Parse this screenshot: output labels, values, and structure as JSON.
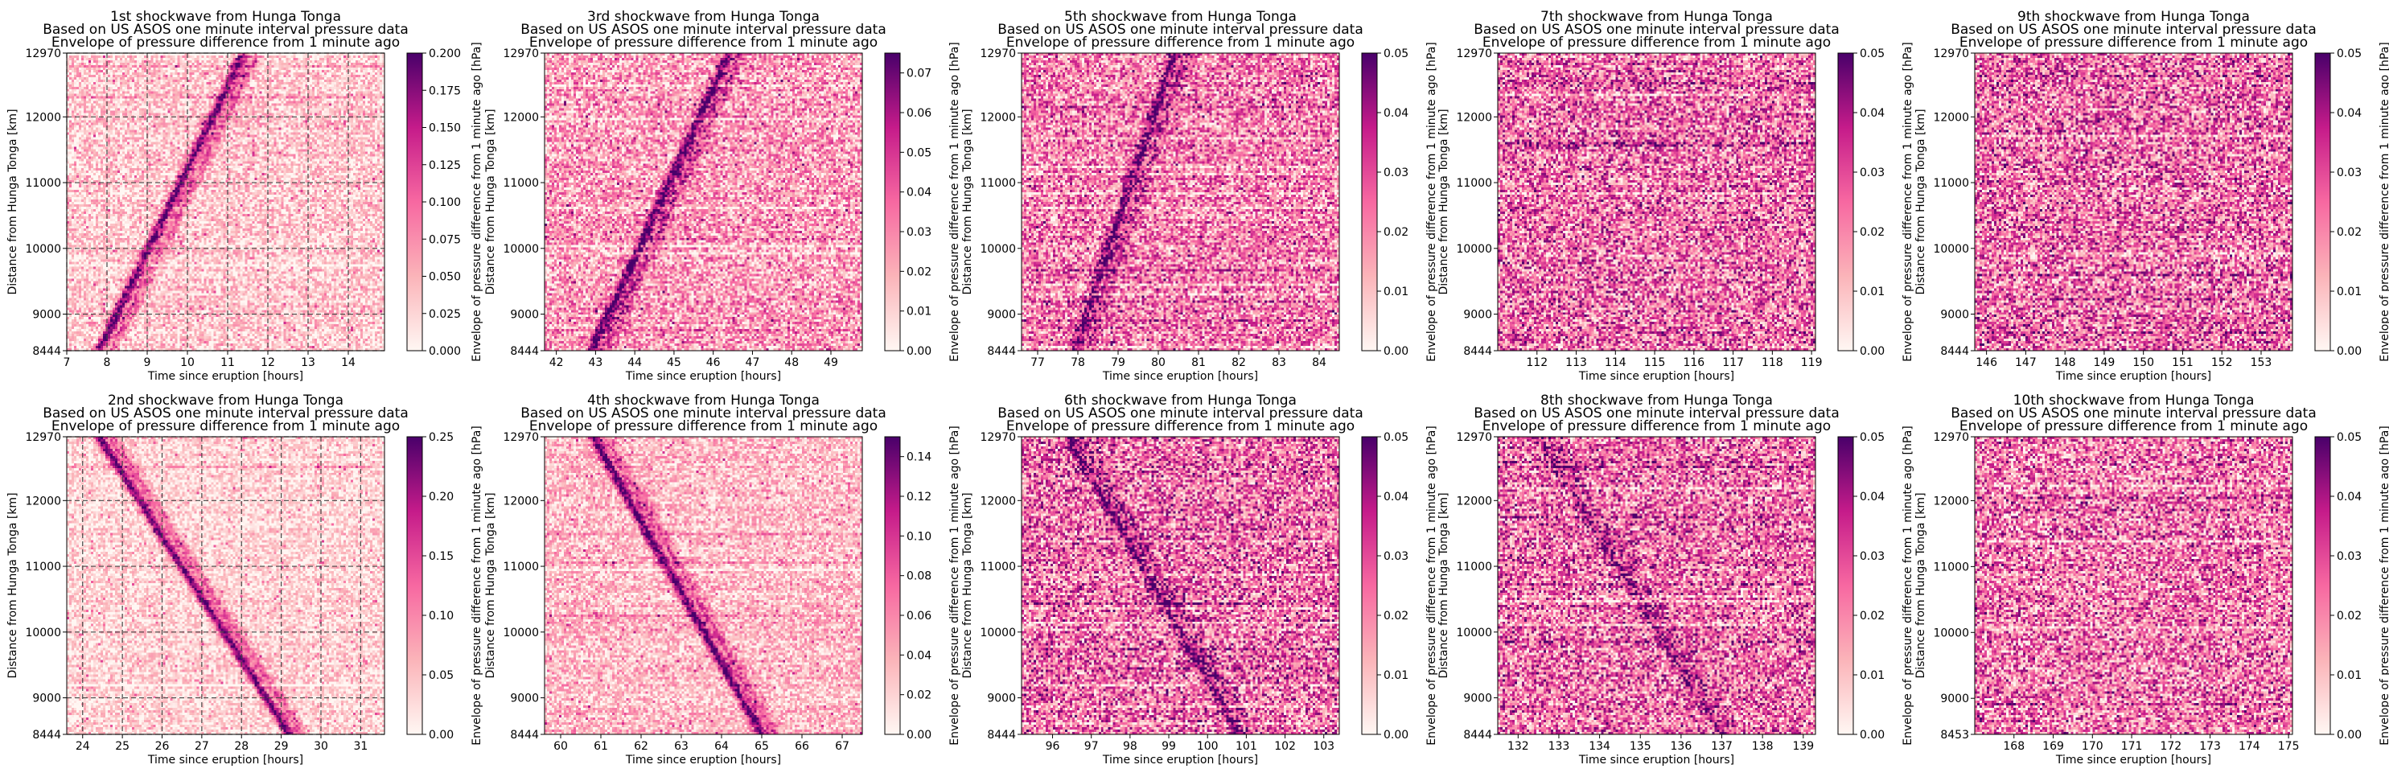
{
  "figure": {
    "colors": {
      "low": "#fff7f3",
      "mid1": "#fbb4b9",
      "mid2": "#f768a1",
      "mid3": "#c51b8a",
      "high": "#49006a",
      "grid": "#444444"
    },
    "y_label": "Distance from Hunga Tonga [km]",
    "x_label": "Time since eruption [hours]",
    "colorbar_label": "Envelope of pressure difference from 1 minute ago [hPa]"
  },
  "chart_data": [
    {
      "type": "heatmap",
      "title": [
        "1st shockwave from Hunga Tonga",
        "Based on US ASOS one minute interval pressure data",
        "Envelope of pressure difference from 1 minute ago"
      ],
      "xlabel": "Time since eruption [hours]",
      "ylabel": "Distance from Hunga Tonga [km]",
      "xlim": [
        7,
        14.9
      ],
      "ylim": [
        8444,
        12970
      ],
      "xticks": [
        7,
        8,
        9,
        10,
        11,
        12,
        13,
        14
      ],
      "yticks": [
        8444,
        9000,
        10000,
        11000,
        12000,
        12970
      ],
      "grid": true,
      "colorbar": {
        "label": "Envelope of pressure difference from 1 minute ago [hPa]",
        "range": [
          0,
          0.2
        ],
        "ticks": [
          "0.000",
          "0.025",
          "0.050",
          "0.075",
          "0.100",
          "0.125",
          "0.150",
          "0.175",
          "0.200"
        ]
      },
      "wave": {
        "direction": "outward",
        "start_time": 7.8,
        "end_time": 11.4,
        "intensity": 0.8
      },
      "background": 0.15,
      "noise": 0.25
    },
    {
      "type": "heatmap",
      "title": [
        "3rd shockwave from Hunga Tonga",
        "Based on US ASOS one minute interval pressure data",
        "Envelope of pressure difference from 1 minute ago"
      ],
      "xlabel": "Time since eruption [hours]",
      "ylabel": "Distance from Hunga Tonga [km]",
      "xlim": [
        41.7,
        49.8
      ],
      "ylim": [
        8444,
        12970
      ],
      "xticks": [
        42,
        43,
        44,
        45,
        46,
        47,
        48,
        49
      ],
      "yticks": [
        8444,
        9000,
        10000,
        11000,
        12000,
        12970
      ],
      "grid": false,
      "colorbar": {
        "label": "Envelope of pressure difference from 1 minute ago [hPa]",
        "range": [
          0,
          0.075
        ],
        "ticks": [
          "0.00",
          "0.01",
          "0.02",
          "0.03",
          "0.04",
          "0.05",
          "0.06",
          "0.07"
        ]
      },
      "wave": {
        "direction": "outward",
        "start_time": 42.9,
        "end_time": 46.4,
        "intensity": 0.75
      },
      "background": 0.3,
      "noise": 0.35
    },
    {
      "type": "heatmap",
      "title": [
        "5th shockwave from Hunga Tonga",
        "Based on US ASOS one minute interval pressure data",
        "Envelope of pressure difference from 1 minute ago"
      ],
      "xlabel": "Time since eruption [hours]",
      "ylabel": "Distance from Hunga Tonga [km]",
      "xlim": [
        76.6,
        84.5
      ],
      "ylim": [
        8444,
        12970
      ],
      "xticks": [
        77,
        78,
        79,
        80,
        81,
        82,
        83,
        84
      ],
      "yticks": [
        8444,
        9000,
        10000,
        11000,
        12000,
        12970
      ],
      "grid": false,
      "colorbar": {
        "label": "Envelope of pressure difference from 1 minute ago [hPa]",
        "range": [
          0,
          0.05
        ],
        "ticks": [
          "0.00",
          "0.01",
          "0.02",
          "0.03",
          "0.04",
          "0.05"
        ]
      },
      "wave": {
        "direction": "outward",
        "start_time": 77.9,
        "end_time": 80.4,
        "intensity": 0.55
      },
      "background": 0.4,
      "noise": 0.4
    },
    {
      "type": "heatmap",
      "title": [
        "7th shockwave from Hunga Tonga",
        "Based on US ASOS one minute interval pressure data",
        "Envelope of pressure difference from 1 minute ago"
      ],
      "xlabel": "Time since eruption [hours]",
      "ylabel": "Distance from Hunga Tonga [km]",
      "xlim": [
        111,
        119.1
      ],
      "ylim": [
        8444,
        12970
      ],
      "xticks": [
        112,
        113,
        114,
        115,
        116,
        117,
        118,
        119
      ],
      "yticks": [
        8444,
        9000,
        10000,
        11000,
        12000,
        12970
      ],
      "grid": false,
      "colorbar": {
        "label": "Envelope of pressure difference from 1 minute ago [hPa]",
        "range": [
          0,
          0.05
        ],
        "ticks": [
          "0.00",
          "0.01",
          "0.02",
          "0.03",
          "0.04",
          "0.05"
        ]
      },
      "wave": {
        "direction": "none",
        "start_time": 0,
        "end_time": 0,
        "intensity": 0
      },
      "background": 0.45,
      "noise": 0.45
    },
    {
      "type": "heatmap",
      "title": [
        "9th shockwave from Hunga Tonga",
        "Based on US ASOS one minute interval pressure data",
        "Envelope of pressure difference from 1 minute ago"
      ],
      "xlabel": "Time since eruption [hours]",
      "ylabel": "Distance from Hunga Tonga [km]",
      "xlim": [
        145.7,
        153.8
      ],
      "ylim": [
        8444,
        12970
      ],
      "xticks": [
        146,
        147,
        148,
        149,
        150,
        151,
        152,
        153
      ],
      "yticks": [
        8444,
        9000,
        10000,
        11000,
        12000,
        12970
      ],
      "grid": false,
      "colorbar": {
        "label": "Envelope of pressure difference from 1 minute ago [hPa]",
        "range": [
          0,
          0.05
        ],
        "ticks": [
          "0.00",
          "0.01",
          "0.02",
          "0.03",
          "0.04",
          "0.05"
        ]
      },
      "wave": {
        "direction": "none",
        "start_time": 0,
        "end_time": 0,
        "intensity": 0
      },
      "background": 0.45,
      "noise": 0.45
    },
    {
      "type": "heatmap",
      "title": [
        "2nd shockwave from Hunga Tonga",
        "Based on US ASOS one minute interval pressure data",
        "Envelope of pressure difference from 1 minute ago"
      ],
      "xlabel": "Time since eruption [hours]",
      "ylabel": "Distance from Hunga Tonga [km]",
      "xlim": [
        23.6,
        31.6
      ],
      "ylim": [
        8444,
        12970
      ],
      "xticks": [
        24,
        25,
        26,
        27,
        28,
        29,
        30,
        31
      ],
      "yticks": [
        8444,
        9000,
        10000,
        11000,
        12000,
        12970
      ],
      "grid": true,
      "colorbar": {
        "label": "Envelope of pressure difference from 1 minute ago [hPa]",
        "range": [
          0,
          0.25
        ],
        "ticks": [
          "0.00",
          "0.05",
          "0.10",
          "0.15",
          "0.20",
          "0.25"
        ]
      },
      "wave": {
        "direction": "inward",
        "start_time": 24.4,
        "end_time": 29.2,
        "intensity": 0.85
      },
      "background": 0.12,
      "noise": 0.2
    },
    {
      "type": "heatmap",
      "title": [
        "4th shockwave from Hunga Tonga",
        "Based on US ASOS one minute interval pressure data",
        "Envelope of pressure difference from 1 minute ago"
      ],
      "xlabel": "Time since eruption [hours]",
      "ylabel": "Distance from Hunga Tonga [km]",
      "xlim": [
        59.6,
        67.5
      ],
      "ylim": [
        8444,
        12970
      ],
      "xticks": [
        60,
        61,
        62,
        63,
        64,
        65,
        66,
        67
      ],
      "yticks": [
        8444,
        9000,
        10000,
        11000,
        12000,
        12970
      ],
      "grid": false,
      "colorbar": {
        "label": "Envelope of pressure difference from 1 minute ago [hPa]",
        "range": [
          0,
          0.15
        ],
        "ticks": [
          "0.00",
          "0.02",
          "0.04",
          "0.06",
          "0.08",
          "0.10",
          "0.12",
          "0.14"
        ]
      },
      "wave": {
        "direction": "inward",
        "start_time": 60.8,
        "end_time": 65.0,
        "intensity": 0.8
      },
      "background": 0.2,
      "noise": 0.25
    },
    {
      "type": "heatmap",
      "title": [
        "6th shockwave from Hunga Tonga",
        "Based on US ASOS one minute interval pressure data",
        "Envelope of pressure difference from 1 minute ago"
      ],
      "xlabel": "Time since eruption [hours]",
      "ylabel": "Distance from Hunga Tonga [km]",
      "xlim": [
        95.2,
        103.4
      ],
      "ylim": [
        8444,
        12970
      ],
      "xticks": [
        96,
        97,
        98,
        99,
        100,
        101,
        102,
        103
      ],
      "yticks": [
        8444,
        9000,
        10000,
        11000,
        12000,
        12970
      ],
      "grid": false,
      "colorbar": {
        "label": "Envelope of pressure difference from 1 minute ago [hPa]",
        "range": [
          0,
          0.05
        ],
        "ticks": [
          "0.00",
          "0.01",
          "0.02",
          "0.03",
          "0.04",
          "0.05"
        ]
      },
      "wave": {
        "direction": "inward",
        "start_time": 96.4,
        "end_time": 100.8,
        "intensity": 0.5
      },
      "background": 0.45,
      "noise": 0.45
    },
    {
      "type": "heatmap",
      "title": [
        "8th shockwave from Hunga Tonga",
        "Based on US ASOS one minute interval pressure data",
        "Envelope of pressure difference from 1 minute ago"
      ],
      "xlabel": "Time since eruption [hours]",
      "ylabel": "Distance from Hunga Tonga [km]",
      "xlim": [
        131.5,
        139.3
      ],
      "ylim": [
        8444,
        12970
      ],
      "xticks": [
        132,
        133,
        134,
        135,
        136,
        137,
        138,
        139
      ],
      "yticks": [
        8444,
        9000,
        10000,
        11000,
        12000,
        12970
      ],
      "grid": false,
      "colorbar": {
        "label": "Envelope of pressure difference from 1 minute ago [hPa]",
        "range": [
          0,
          0.05
        ],
        "ticks": [
          "0.00",
          "0.01",
          "0.02",
          "0.03",
          "0.04",
          "0.05"
        ]
      },
      "wave": {
        "direction": "inward",
        "start_time": 132.5,
        "end_time": 137.0,
        "intensity": 0.35
      },
      "background": 0.45,
      "noise": 0.45
    },
    {
      "type": "heatmap",
      "title": [
        "10th shockwave from Hunga Tonga",
        "Based on US ASOS one minute interval pressure data",
        "Envelope of pressure difference from 1 minute ago"
      ],
      "xlabel": "Time since eruption [hours]",
      "ylabel": "Distance from Hunga Tonga [km]",
      "xlim": [
        167,
        175.1
      ],
      "ylim": [
        8453,
        12970
      ],
      "xticks": [
        168,
        169,
        170,
        171,
        172,
        173,
        174,
        175
      ],
      "yticks": [
        8453,
        9000,
        10000,
        11000,
        12000,
        12970
      ],
      "grid": false,
      "colorbar": {
        "label": "Envelope of pressure difference from 1 minute ago [hPa]",
        "range": [
          0,
          0.05
        ],
        "ticks": [
          "0.00",
          "0.01",
          "0.02",
          "0.03",
          "0.04",
          "0.05"
        ]
      },
      "wave": {
        "direction": "none",
        "start_time": 0,
        "end_time": 0,
        "intensity": 0
      },
      "background": 0.42,
      "noise": 0.45
    }
  ]
}
